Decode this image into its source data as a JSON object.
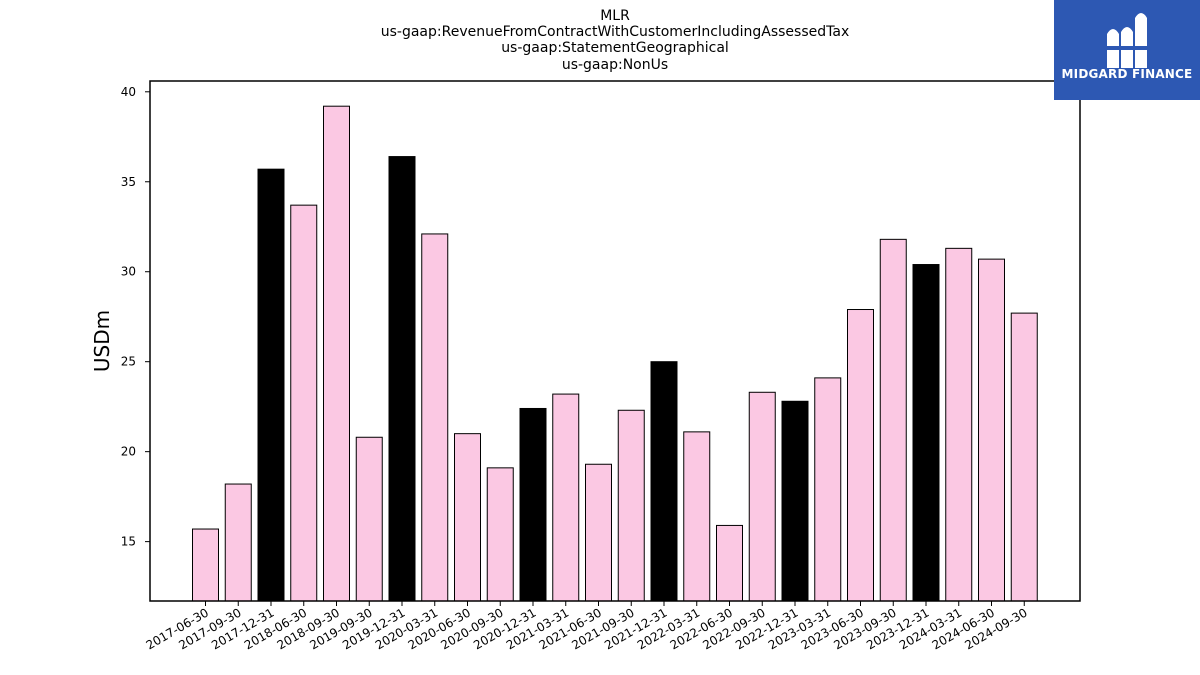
{
  "chart_data": {
    "type": "bar",
    "title_lines": [
      "MLR",
      "us-gaap:RevenueFromContractWithCustomerIncludingAssessedTax",
      "us-gaap:StatementGeographical",
      "us-gaap:NonUs"
    ],
    "ylabel": "USDm",
    "xlabel": "",
    "ylim": [
      11.7,
      40.6
    ],
    "yticks": [
      15,
      20,
      25,
      30,
      35,
      40
    ],
    "grid": false,
    "categories": [
      "2017-06-30",
      "2017-09-30",
      "2017-12-31",
      "2018-06-30",
      "2018-09-30",
      "2019-09-30",
      "2019-12-31",
      "2020-03-31",
      "2020-06-30",
      "2020-09-30",
      "2020-12-31",
      "2021-03-31",
      "2021-06-30",
      "2021-09-30",
      "2021-12-31",
      "2022-03-31",
      "2022-06-30",
      "2022-09-30",
      "2022-12-31",
      "2023-03-31",
      "2023-06-30",
      "2023-09-30",
      "2023-12-31",
      "2024-03-31",
      "2024-06-30",
      "2024-09-30"
    ],
    "values": [
      15.7,
      18.2,
      35.7,
      33.7,
      39.2,
      20.8,
      36.4,
      32.1,
      21.0,
      19.1,
      22.4,
      23.2,
      19.3,
      22.3,
      25.0,
      21.1,
      15.9,
      23.3,
      22.8,
      24.1,
      27.9,
      31.8,
      30.4,
      31.3,
      30.7,
      27.7
    ],
    "highlight_year_end": [
      false,
      false,
      true,
      false,
      false,
      false,
      true,
      false,
      false,
      false,
      true,
      false,
      false,
      false,
      true,
      false,
      false,
      false,
      true,
      false,
      false,
      false,
      true,
      false,
      false,
      false
    ],
    "colors": {
      "bar": "#fbc8e3",
      "highlight": "#000000",
      "edge": "#000000"
    }
  },
  "logo": {
    "text": "MIDGARD FINANCE",
    "background": "#2d58b3",
    "icon": "midgard-logo-icon"
  }
}
